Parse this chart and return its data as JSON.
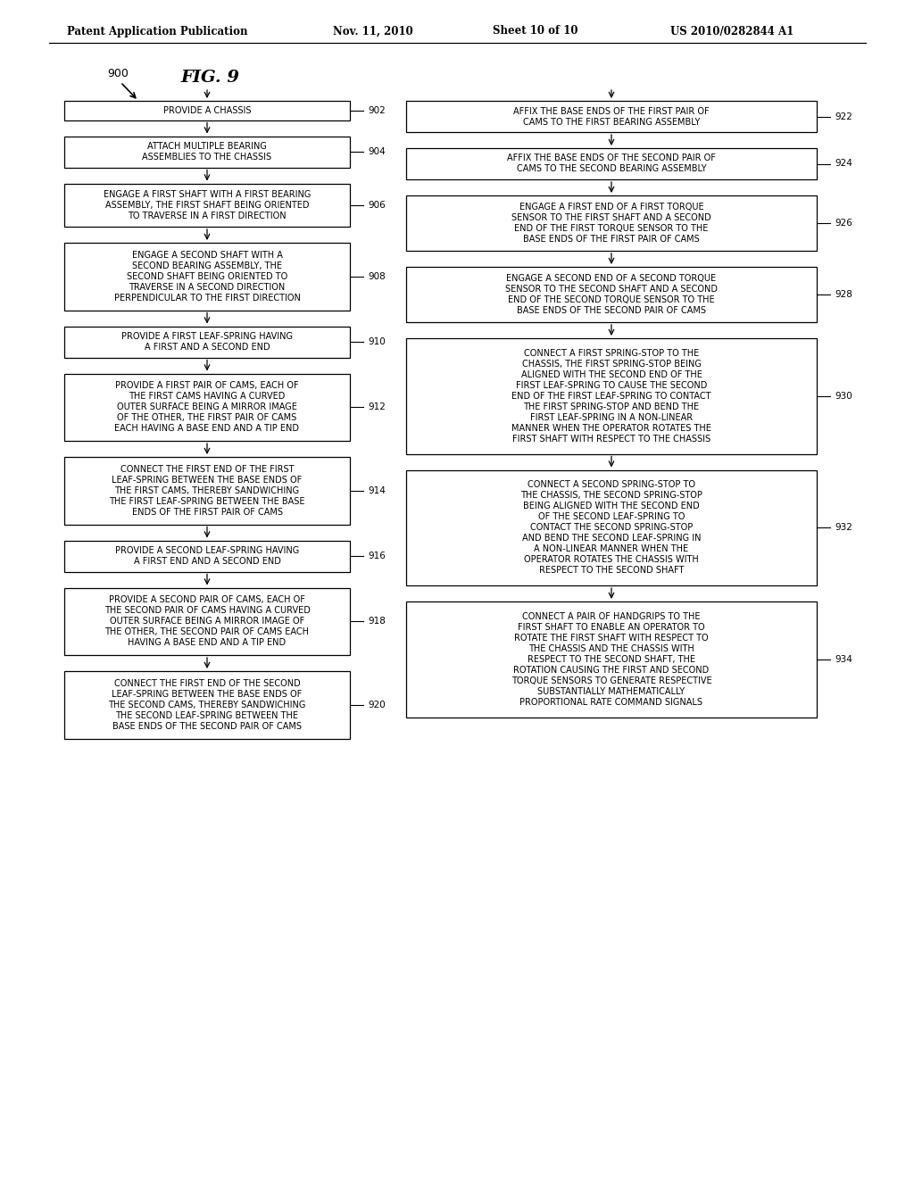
{
  "title_header": "Patent Application Publication",
  "date_header": "Nov. 11, 2010",
  "sheet_header": "Sheet 10 of 10",
  "patent_header": "US 2010/0282844 A1",
  "fig_label": "FIG. 9",
  "fig_number": "900",
  "background_color": "#ffffff",
  "left_boxes": [
    {
      "id": "902",
      "label": "PROVIDE A CHASSIS",
      "nlines": 1
    },
    {
      "id": "904",
      "label": "ATTACH MULTIPLE BEARING\nASSEMBLIES TO THE CHASSIS",
      "nlines": 2
    },
    {
      "id": "906",
      "label": "ENGAGE A FIRST SHAFT WITH A FIRST BEARING\nASSEMBLY, THE FIRST SHAFT BEING ORIENTED\nTO TRAVERSE IN A FIRST DIRECTION",
      "nlines": 3
    },
    {
      "id": "908",
      "label": "ENGAGE A SECOND SHAFT WITH A\nSECOND BEARING ASSEMBLY, THE\nSECOND SHAFT BEING ORIENTED TO\nTRAVERSE IN A SECOND DIRECTION\nPERPENDICULAR TO THE FIRST DIRECTION",
      "nlines": 5
    },
    {
      "id": "910",
      "label": "PROVIDE A FIRST LEAF-SPRING HAVING\nA FIRST AND A SECOND END",
      "nlines": 2
    },
    {
      "id": "912",
      "label": "PROVIDE A FIRST PAIR OF CAMS, EACH OF\nTHE FIRST CAMS HAVING A CURVED\nOUTER SURFACE BEING A MIRROR IMAGE\nOF THE OTHER, THE FIRST PAIR OF CAMS\nEACH HAVING A BASE END AND A TIP END",
      "nlines": 5
    },
    {
      "id": "914",
      "label": "CONNECT THE FIRST END OF THE FIRST\nLEAF-SPRING BETWEEN THE BASE ENDS OF\nTHE FIRST CAMS, THEREBY SANDWICHING\nTHE FIRST LEAF-SPRING BETWEEN THE BASE\nENDS OF THE FIRST PAIR OF CAMS",
      "nlines": 5
    },
    {
      "id": "916",
      "label": "PROVIDE A SECOND LEAF-SPRING HAVING\nA FIRST END AND A SECOND END",
      "nlines": 2
    },
    {
      "id": "918",
      "label": "PROVIDE A SECOND PAIR OF CAMS, EACH OF\nTHE SECOND PAIR OF CAMS HAVING A CURVED\nOUTER SURFACE BEING A MIRROR IMAGE OF\nTHE OTHER, THE SECOND PAIR OF CAMS EACH\nHAVING A BASE END AND A TIP END",
      "nlines": 5
    },
    {
      "id": "920",
      "label": "CONNECT THE FIRST END OF THE SECOND\nLEAF-SPRING BETWEEN THE BASE ENDS OF\nTHE SECOND CAMS, THEREBY SANDWICHING\nTHE SECOND LEAF-SPRING BETWEEN THE\nBASE ENDS OF THE SECOND PAIR OF CAMS",
      "nlines": 5
    }
  ],
  "right_boxes": [
    {
      "id": "922",
      "label": "AFFIX THE BASE ENDS OF THE FIRST PAIR OF\nCAMS TO THE FIRST BEARING ASSEMBLY",
      "nlines": 2
    },
    {
      "id": "924",
      "label": "AFFIX THE BASE ENDS OF THE SECOND PAIR OF\nCAMS TO THE SECOND BEARING ASSEMBLY",
      "nlines": 2
    },
    {
      "id": "926",
      "label": "ENGAGE A FIRST END OF A FIRST TORQUE\nSENSOR TO THE FIRST SHAFT AND A SECOND\nEND OF THE FIRST TORQUE SENSOR TO THE\nBASE ENDS OF THE FIRST PAIR OF CAMS",
      "nlines": 4
    },
    {
      "id": "928",
      "label": "ENGAGE A SECOND END OF A SECOND TORQUE\nSENSOR TO THE SECOND SHAFT AND A SECOND\nEND OF THE SECOND TORQUE SENSOR TO THE\nBASE ENDS OF THE SECOND PAIR OF CAMS",
      "nlines": 4
    },
    {
      "id": "930",
      "label": "CONNECT A FIRST SPRING-STOP TO THE\nCHASSIS, THE FIRST SPRING-STOP BEING\nALIGNED WITH THE SECOND END OF THE\nFIRST LEAF-SPRING TO CAUSE THE SECOND\nEND OF THE FIRST LEAF-SPRING TO CONTACT\nTHE FIRST SPRING-STOP AND BEND THE\nFIRST LEAF-SPRING IN A NON-LINEAR\nMANNER WHEN THE OPERATOR ROTATES THE\nFIRST SHAFT WITH RESPECT TO THE CHASSIS",
      "nlines": 9
    },
    {
      "id": "932",
      "label": "CONNECT A SECOND SPRING-STOP TO\nTHE CHASSIS, THE SECOND SPRING-STOP\nBEING ALIGNED WITH THE SECOND END\nOF THE SECOND LEAF-SPRING TO\nCONTACT THE SECOND SPRING-STOP\nAND BEND THE SECOND LEAF-SPRING IN\nA NON-LINEAR MANNER WHEN THE\nOPERATOR ROTATES THE CHASSIS WITH\nRESPECT TO THE SECOND SHAFT",
      "nlines": 9
    },
    {
      "id": "934",
      "label": "CONNECT A PAIR OF HANDGRIPS TO THE\nFIRST SHAFT TO ENABLE AN OPERATOR TO\nROTATE THE FIRST SHAFT WITH RESPECT TO\nTHE CHASSIS AND THE CHASSIS WITH\nRESPECT TO THE SECOND SHAFT, THE\nROTATION CAUSING THE FIRST AND SECOND\nTORQUE SENSORS TO GENERATE RESPECTIVE\nSUBSTANTIALLY MATHEMATICALLY\nPROPORTIONAL RATE COMMAND SIGNALS",
      "nlines": 9
    }
  ]
}
